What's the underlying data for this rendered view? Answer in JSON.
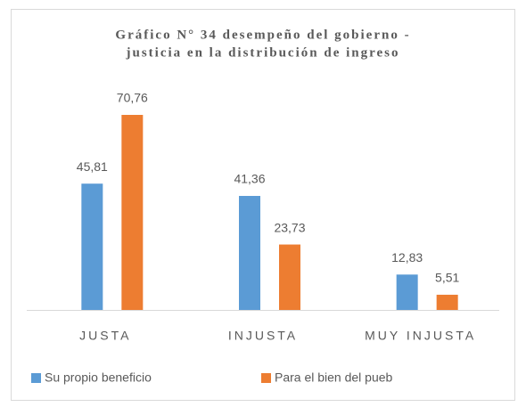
{
  "chart_data": {
    "type": "bar",
    "title": [
      "Gráfico N° 34 desempeño del gobierno -",
      "justicia en la distribución de ingreso"
    ],
    "categories": [
      "JUSTA",
      "INJUSTA",
      "MUY INJUSTA"
    ],
    "series": [
      {
        "name": "Su propio beneficio",
        "color": "#5b9bd5",
        "values": [
          45.81,
          41.36,
          12.83
        ],
        "value_labels": [
          "45,81",
          "41,36",
          "12,83"
        ]
      },
      {
        "name": "Para el bien del pueb",
        "color": "#ed7d31",
        "values": [
          70.76,
          23.73,
          5.51
        ],
        "value_labels": [
          "70,76",
          "23,73",
          "5,51"
        ]
      }
    ],
    "legend": "bottom"
  }
}
